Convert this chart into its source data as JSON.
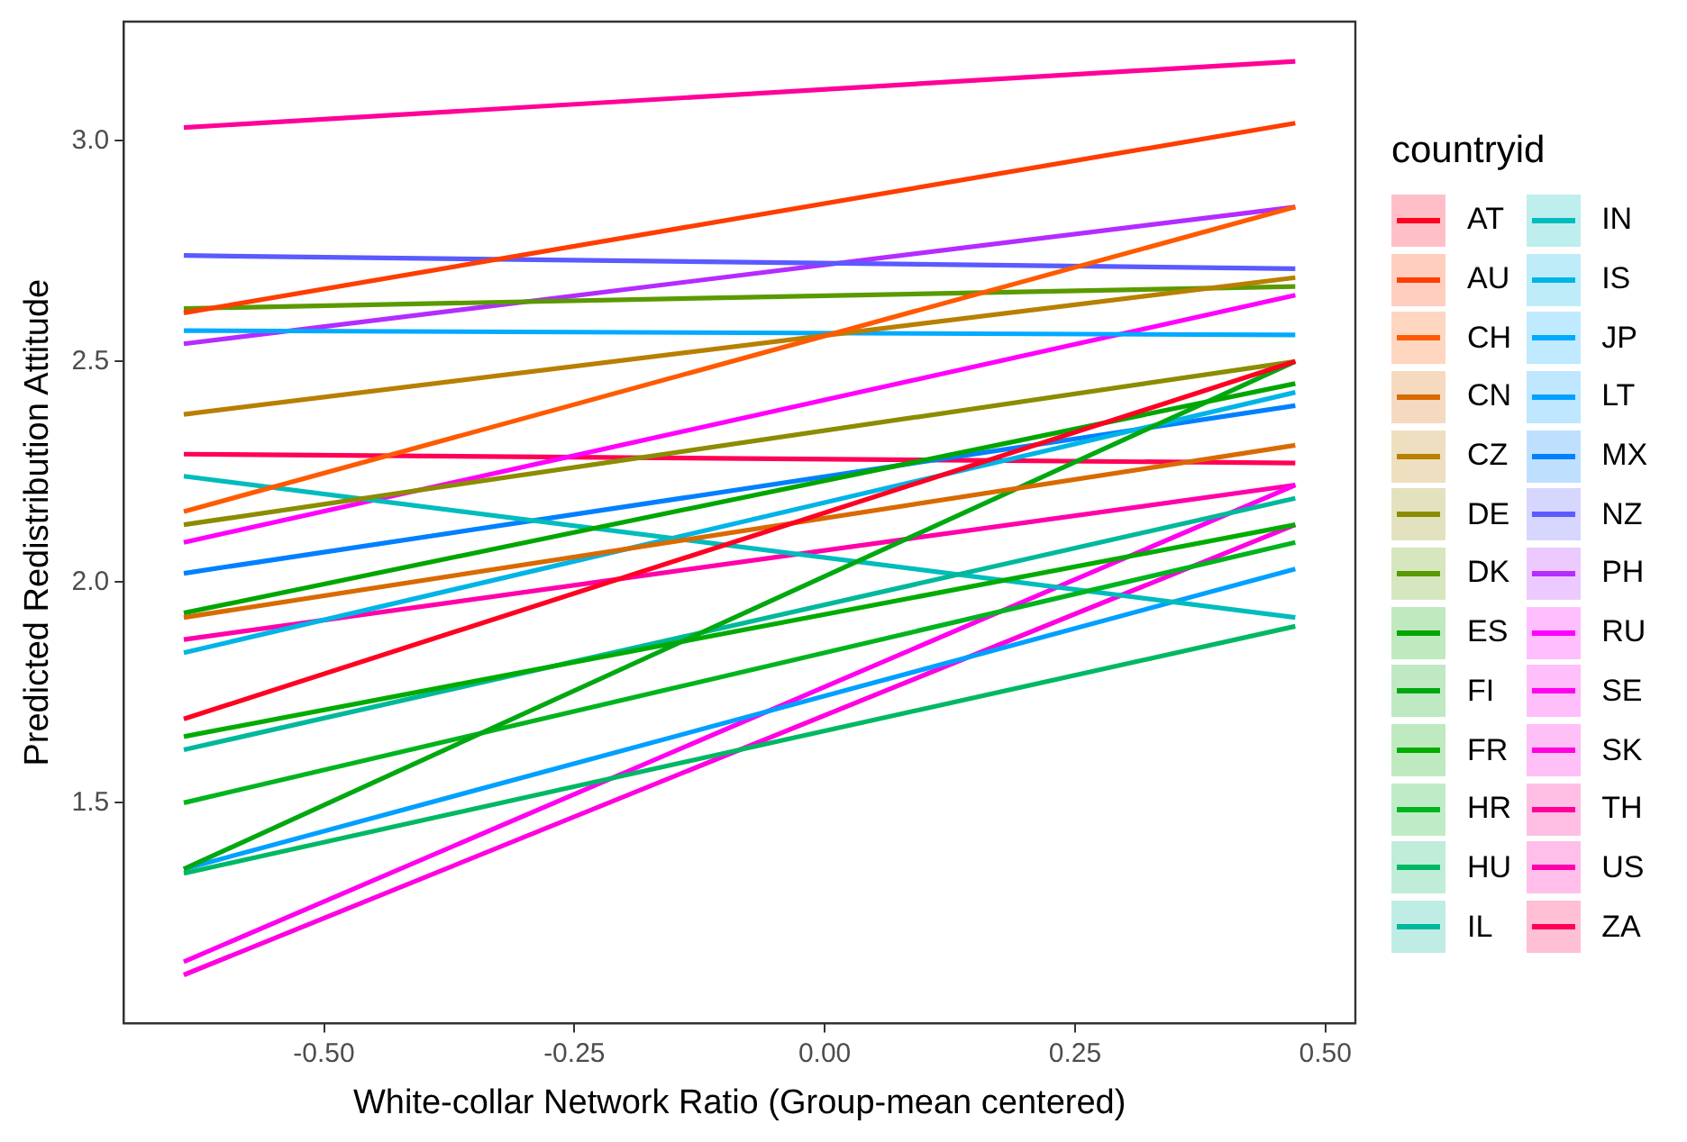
{
  "chart_data": {
    "type": "line",
    "xlabel": "White-collar Network Ratio (Group-mean centered)",
    "ylabel": "Predicted Redistribution Attitude",
    "legend_title": "countryid",
    "legend": "right",
    "grid": false,
    "marker": "none",
    "line_style": "solid",
    "x": [
      -0.64,
      0.47
    ],
    "xlim": [
      -0.7,
      0.53
    ],
    "ylim": [
      1.0,
      3.27
    ],
    "xticks": [
      {
        "value": -0.5,
        "label": "-0.50"
      },
      {
        "value": -0.25,
        "label": "-0.25"
      },
      {
        "value": 0,
        "label": "0.00"
      },
      {
        "value": 0.25,
        "label": "0.25"
      },
      {
        "value": 0.5,
        "label": "0.50"
      }
    ],
    "yticks": [
      1.5,
      {
        "value": 2,
        "label": "2.0"
      },
      2.5,
      {
        "value": 3,
        "label": "3.0"
      }
    ],
    "series": [
      {
        "name": "AT",
        "color": "#ff0022",
        "values": [
          1.69,
          2.5
        ]
      },
      {
        "name": "AU",
        "color": "#ff3d00",
        "values": [
          2.61,
          3.04
        ]
      },
      {
        "name": "CH",
        "color": "#ff5a00",
        "values": [
          2.16,
          2.85
        ]
      },
      {
        "name": "CN",
        "color": "#d96a00",
        "values": [
          1.92,
          2.31
        ]
      },
      {
        "name": "CZ",
        "color": "#b87f00",
        "values": [
          2.38,
          2.69
        ]
      },
      {
        "name": "DE",
        "color": "#8c8c00",
        "values": [
          2.13,
          2.5
        ]
      },
      {
        "name": "DK",
        "color": "#5a9a00",
        "values": [
          2.62,
          2.67
        ]
      },
      {
        "name": "ES",
        "color": "#00a600",
        "values": [
          1.93,
          2.45
        ]
      },
      {
        "name": "FI",
        "color": "#00a810",
        "values": [
          1.35,
          2.5
        ]
      },
      {
        "name": "FR",
        "color": "#00ac00",
        "values": [
          1.65,
          2.13
        ]
      },
      {
        "name": "HR",
        "color": "#00b41e",
        "values": [
          1.5,
          2.09
        ]
      },
      {
        "name": "HU",
        "color": "#00b864",
        "values": [
          1.34,
          1.9
        ]
      },
      {
        "name": "IL",
        "color": "#00b89a",
        "values": [
          1.62,
          2.19
        ]
      },
      {
        "name": "IN",
        "color": "#00bcbc",
        "values": [
          2.24,
          1.92
        ]
      },
      {
        "name": "IS",
        "color": "#00b4e6",
        "values": [
          1.84,
          2.43
        ]
      },
      {
        "name": "JP",
        "color": "#00aaff",
        "values": [
          2.57,
          2.56
        ]
      },
      {
        "name": "LT",
        "color": "#00a0ff",
        "values": [
          1.35,
          2.03
        ]
      },
      {
        "name": "MX",
        "color": "#0080ff",
        "values": [
          2.02,
          2.4
        ]
      },
      {
        "name": "NZ",
        "color": "#5a5aff",
        "values": [
          2.74,
          2.71
        ]
      },
      {
        "name": "PH",
        "color": "#b42cff",
        "values": [
          2.54,
          2.85
        ]
      },
      {
        "name": "RU",
        "color": "#ff00ff",
        "values": [
          2.09,
          2.65
        ]
      },
      {
        "name": "SE",
        "color": "#ff00f0",
        "values": [
          1.14,
          2.22
        ]
      },
      {
        "name": "SK",
        "color": "#ff00e0",
        "values": [
          1.11,
          2.13
        ]
      },
      {
        "name": "TH",
        "color": "#ff0099",
        "values": [
          3.03,
          3.18
        ]
      },
      {
        "name": "US",
        "color": "#ff00aa",
        "values": [
          1.87,
          2.22
        ]
      },
      {
        "name": "ZA",
        "color": "#ff0055",
        "values": [
          2.29,
          2.27
        ]
      }
    ]
  }
}
